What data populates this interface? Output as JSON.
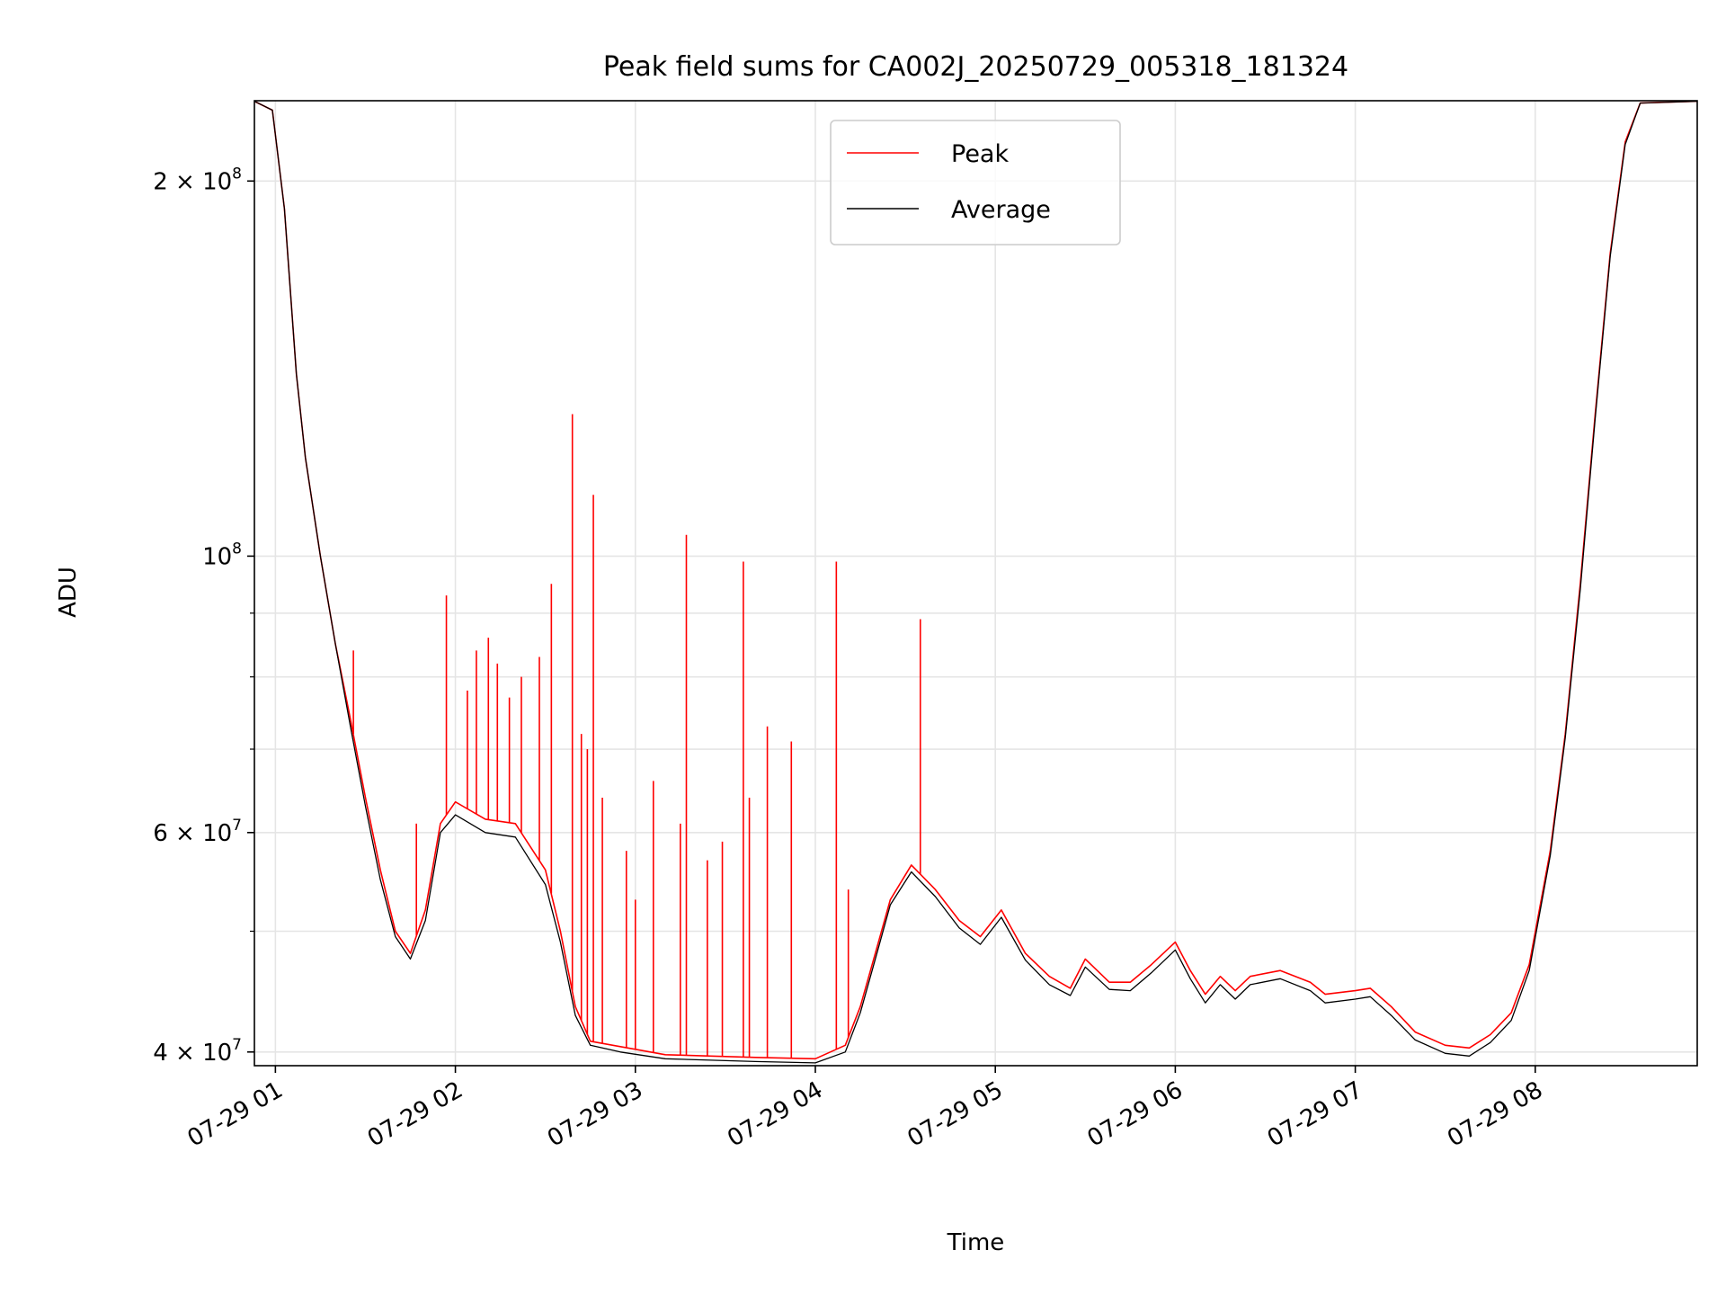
{
  "chart_data": {
    "type": "line",
    "title": "Peak field sums for CA002J_20250729_005318_181324",
    "xlabel": "Time",
    "ylabel": "ADU",
    "yscale": "log",
    "xlim": [
      "2025-07-29 00:53",
      "2025-07-29 08:54"
    ],
    "ylim": [
      39000000,
      232000000
    ],
    "grid": true,
    "legend_position": "upper-center",
    "x_ticks": [
      {
        "t": "2025-07-29 01:00",
        "label": "07-29 01"
      },
      {
        "t": "2025-07-29 02:00",
        "label": "07-29 02"
      },
      {
        "t": "2025-07-29 03:00",
        "label": "07-29 03"
      },
      {
        "t": "2025-07-29 04:00",
        "label": "07-29 04"
      },
      {
        "t": "2025-07-29 05:00",
        "label": "07-29 05"
      },
      {
        "t": "2025-07-29 06:00",
        "label": "07-29 06"
      },
      {
        "t": "2025-07-29 07:00",
        "label": "07-29 07"
      },
      {
        "t": "2025-07-29 08:00",
        "label": "07-29 08"
      }
    ],
    "y_ticks": [
      {
        "value": 40000000,
        "mantissa": "4 × 10",
        "exp": "7"
      },
      {
        "value": 60000000,
        "mantissa": "6 × 10",
        "exp": "7"
      },
      {
        "value": 100000000,
        "mantissa": "10",
        "exp": "8"
      },
      {
        "value": 200000000,
        "mantissa": "2 × 10",
        "exp": "8"
      }
    ],
    "y_minor_ticks": [
      50000000,
      70000000,
      80000000,
      90000000,
      300000000
    ],
    "series": [
      {
        "name": "Peak",
        "color": "#ff0000",
        "points": [
          [
            "2025-07-29 00:53",
            232000000
          ],
          [
            "2025-07-29 00:59",
            228000000
          ],
          [
            "2025-07-29 01:03",
            190000000
          ],
          [
            "2025-07-29 01:07",
            140000000
          ],
          [
            "2025-07-29 01:10",
            120000000
          ],
          [
            "2025-07-29 01:15",
            100000000
          ],
          [
            "2025-07-29 01:20",
            85000000
          ],
          [
            "2025-07-29 01:25",
            74000000
          ],
          [
            "2025-07-29 01:30",
            64000000
          ],
          [
            "2025-07-29 01:35",
            56000000
          ],
          [
            "2025-07-29 01:40",
            50000000
          ],
          [
            "2025-07-29 01:45",
            48000000
          ],
          [
            "2025-07-29 01:50",
            52000000
          ],
          [
            "2025-07-29 01:55",
            61000000
          ],
          [
            "2025-07-29 02:00",
            63500000
          ],
          [
            "2025-07-29 02:10",
            61500000
          ],
          [
            "2025-07-29 02:20",
            61000000
          ],
          [
            "2025-07-29 02:30",
            56000000
          ],
          [
            "2025-07-29 02:35",
            50000000
          ],
          [
            "2025-07-29 02:40",
            43500000
          ],
          [
            "2025-07-29 02:45",
            40800000
          ],
          [
            "2025-07-29 02:55",
            40400000
          ],
          [
            "2025-07-29 03:10",
            39800000
          ],
          [
            "2025-07-29 03:40",
            39600000
          ],
          [
            "2025-07-29 04:00",
            39500000
          ],
          [
            "2025-07-29 04:10",
            40500000
          ],
          [
            "2025-07-29 04:15",
            43500000
          ],
          [
            "2025-07-29 04:20",
            48000000
          ],
          [
            "2025-07-29 04:25",
            53000000
          ],
          [
            "2025-07-29 04:32",
            56500000
          ],
          [
            "2025-07-29 04:40",
            54000000
          ],
          [
            "2025-07-29 04:48",
            51000000
          ],
          [
            "2025-07-29 04:55",
            49500000
          ],
          [
            "2025-07-29 05:02",
            52000000
          ],
          [
            "2025-07-29 05:10",
            48000000
          ],
          [
            "2025-07-29 05:18",
            46000000
          ],
          [
            "2025-07-29 05:25",
            45000000
          ],
          [
            "2025-07-29 05:30",
            47500000
          ],
          [
            "2025-07-29 05:38",
            45500000
          ],
          [
            "2025-07-29 05:45",
            45500000
          ],
          [
            "2025-07-29 05:52",
            47000000
          ],
          [
            "2025-07-29 06:00",
            49000000
          ],
          [
            "2025-07-29 06:05",
            46500000
          ],
          [
            "2025-07-29 06:10",
            44500000
          ],
          [
            "2025-07-29 06:15",
            46000000
          ],
          [
            "2025-07-29 06:20",
            44800000
          ],
          [
            "2025-07-29 06:25",
            46000000
          ],
          [
            "2025-07-29 06:35",
            46500000
          ],
          [
            "2025-07-29 06:45",
            45500000
          ],
          [
            "2025-07-29 06:50",
            44500000
          ],
          [
            "2025-07-29 07:00",
            44800000
          ],
          [
            "2025-07-29 07:05",
            45000000
          ],
          [
            "2025-07-29 07:12",
            43500000
          ],
          [
            "2025-07-29 07:20",
            41500000
          ],
          [
            "2025-07-29 07:30",
            40500000
          ],
          [
            "2025-07-29 07:38",
            40300000
          ],
          [
            "2025-07-29 07:45",
            41300000
          ],
          [
            "2025-07-29 07:52",
            43000000
          ],
          [
            "2025-07-29 07:58",
            47000000
          ],
          [
            "2025-07-29 08:05",
            58000000
          ],
          [
            "2025-07-29 08:10",
            72000000
          ],
          [
            "2025-07-29 08:15",
            95000000
          ],
          [
            "2025-07-29 08:20",
            130000000
          ],
          [
            "2025-07-29 08:25",
            175000000
          ],
          [
            "2025-07-29 08:30",
            215000000
          ],
          [
            "2025-07-29 08:35",
            231000000
          ],
          [
            "2025-07-29 08:54",
            232000000
          ]
        ],
        "spikes": [
          [
            "2025-07-29 01:26",
            84000000
          ],
          [
            "2025-07-29 01:47",
            61000000
          ],
          [
            "2025-07-29 01:57",
            93000000
          ],
          [
            "2025-07-29 02:04",
            78000000
          ],
          [
            "2025-07-29 02:07",
            84000000
          ],
          [
            "2025-07-29 02:11",
            86000000
          ],
          [
            "2025-07-29 02:14",
            82000000
          ],
          [
            "2025-07-29 02:18",
            77000000
          ],
          [
            "2025-07-29 02:22",
            80000000
          ],
          [
            "2025-07-29 02:28",
            83000000
          ],
          [
            "2025-07-29 02:32",
            95000000
          ],
          [
            "2025-07-29 02:39",
            130000000
          ],
          [
            "2025-07-29 02:42",
            72000000
          ],
          [
            "2025-07-29 02:44",
            70000000
          ],
          [
            "2025-07-29 02:46",
            112000000
          ],
          [
            "2025-07-29 02:49",
            64000000
          ],
          [
            "2025-07-29 02:57",
            58000000
          ],
          [
            "2025-07-29 03:00",
            53000000
          ],
          [
            "2025-07-29 03:06",
            66000000
          ],
          [
            "2025-07-29 03:15",
            61000000
          ],
          [
            "2025-07-29 03:17",
            104000000
          ],
          [
            "2025-07-29 03:24",
            57000000
          ],
          [
            "2025-07-29 03:29",
            59000000
          ],
          [
            "2025-07-29 03:36",
            99000000
          ],
          [
            "2025-07-29 03:38",
            64000000
          ],
          [
            "2025-07-29 03:44",
            73000000
          ],
          [
            "2025-07-29 03:52",
            71000000
          ],
          [
            "2025-07-29 04:07",
            99000000
          ],
          [
            "2025-07-29 04:11",
            54000000
          ],
          [
            "2025-07-29 04:35",
            89000000
          ]
        ]
      },
      {
        "name": "Average",
        "color": "#000000",
        "points": [
          [
            "2025-07-29 00:53",
            232000000
          ],
          [
            "2025-07-29 00:59",
            228000000
          ],
          [
            "2025-07-29 01:03",
            190000000
          ],
          [
            "2025-07-29 01:07",
            140000000
          ],
          [
            "2025-07-29 01:10",
            120000000
          ],
          [
            "2025-07-29 01:15",
            100000000
          ],
          [
            "2025-07-29 01:20",
            85000000
          ],
          [
            "2025-07-29 01:25",
            73000000
          ],
          [
            "2025-07-29 01:30",
            63000000
          ],
          [
            "2025-07-29 01:35",
            55000000
          ],
          [
            "2025-07-29 01:40",
            49500000
          ],
          [
            "2025-07-29 01:45",
            47500000
          ],
          [
            "2025-07-29 01:50",
            51000000
          ],
          [
            "2025-07-29 01:55",
            60000000
          ],
          [
            "2025-07-29 02:00",
            62000000
          ],
          [
            "2025-07-29 02:10",
            60000000
          ],
          [
            "2025-07-29 02:20",
            59500000
          ],
          [
            "2025-07-29 02:30",
            54500000
          ],
          [
            "2025-07-29 02:35",
            49000000
          ],
          [
            "2025-07-29 02:40",
            42800000
          ],
          [
            "2025-07-29 02:45",
            40500000
          ],
          [
            "2025-07-29 02:55",
            40000000
          ],
          [
            "2025-07-29 03:10",
            39500000
          ],
          [
            "2025-07-29 03:40",
            39300000
          ],
          [
            "2025-07-29 04:00",
            39200000
          ],
          [
            "2025-07-29 04:10",
            40000000
          ],
          [
            "2025-07-29 04:15",
            43000000
          ],
          [
            "2025-07-29 04:20",
            47500000
          ],
          [
            "2025-07-29 04:25",
            52500000
          ],
          [
            "2025-07-29 04:32",
            55800000
          ],
          [
            "2025-07-29 04:40",
            53300000
          ],
          [
            "2025-07-29 04:48",
            50300000
          ],
          [
            "2025-07-29 04:55",
            48800000
          ],
          [
            "2025-07-29 05:02",
            51300000
          ],
          [
            "2025-07-29 05:10",
            47400000
          ],
          [
            "2025-07-29 05:18",
            45300000
          ],
          [
            "2025-07-29 05:25",
            44400000
          ],
          [
            "2025-07-29 05:30",
            46800000
          ],
          [
            "2025-07-29 05:38",
            44900000
          ],
          [
            "2025-07-29 05:45",
            44800000
          ],
          [
            "2025-07-29 05:52",
            46300000
          ],
          [
            "2025-07-29 06:00",
            48300000
          ],
          [
            "2025-07-29 06:05",
            45800000
          ],
          [
            "2025-07-29 06:10",
            43800000
          ],
          [
            "2025-07-29 06:15",
            45300000
          ],
          [
            "2025-07-29 06:20",
            44100000
          ],
          [
            "2025-07-29 06:25",
            45300000
          ],
          [
            "2025-07-29 06:35",
            45800000
          ],
          [
            "2025-07-29 06:45",
            44800000
          ],
          [
            "2025-07-29 06:50",
            43800000
          ],
          [
            "2025-07-29 07:00",
            44100000
          ],
          [
            "2025-07-29 07:05",
            44300000
          ],
          [
            "2025-07-29 07:12",
            42800000
          ],
          [
            "2025-07-29 07:20",
            40900000
          ],
          [
            "2025-07-29 07:30",
            39900000
          ],
          [
            "2025-07-29 07:38",
            39700000
          ],
          [
            "2025-07-29 07:45",
            40700000
          ],
          [
            "2025-07-29 07:52",
            42400000
          ],
          [
            "2025-07-29 07:58",
            46500000
          ],
          [
            "2025-07-29 08:05",
            57500000
          ],
          [
            "2025-07-29 08:10",
            71500000
          ],
          [
            "2025-07-29 08:15",
            94000000
          ],
          [
            "2025-07-29 08:20",
            129000000
          ],
          [
            "2025-07-29 08:25",
            174000000
          ],
          [
            "2025-07-29 08:30",
            214000000
          ],
          [
            "2025-07-29 08:35",
            231000000
          ],
          [
            "2025-07-29 08:54",
            232000000
          ]
        ]
      }
    ]
  }
}
